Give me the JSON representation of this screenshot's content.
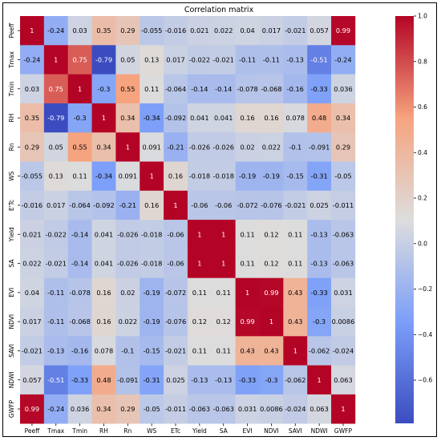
{
  "chart_data": {
    "type": "heatmap",
    "title": "Correlation matrix",
    "labels": [
      "Peeff",
      "Tmax",
      "Tmin",
      "RH",
      "Rn",
      "WS",
      "ETc",
      "Yield",
      "SA",
      "EVI",
      "NDVI",
      "SAVI",
      "NDWI",
      "GWFP"
    ],
    "x_tick_labels": [
      "Peeff",
      "Tmax",
      "Tmin",
      "RH",
      "Rn",
      "WS",
      "ETc",
      "Yield",
      "SA",
      "EVI",
      "NDVI",
      "SAVI",
      "NDWI",
      "GWFP"
    ],
    "y_tick_labels": [
      "Peeff",
      "Tmax",
      "Tmin",
      "RH",
      "Rn",
      "WS",
      "E'Tc",
      "Yield",
      "SA",
      "EVI",
      "NDVI",
      "SAVI",
      "NDWI",
      "GWFP"
    ],
    "values": [
      [
        1,
        -0.24,
        0.03,
        0.35,
        0.29,
        -0.055,
        -0.016,
        0.021,
        0.022,
        0.04,
        0.017,
        -0.021,
        0.057,
        0.99
      ],
      [
        -0.24,
        1,
        0.75,
        -0.79,
        0.05,
        0.13,
        0.017,
        -0.022,
        -0.021,
        -0.11,
        -0.11,
        -0.13,
        -0.51,
        -0.24
      ],
      [
        0.03,
        0.75,
        1,
        -0.3,
        0.55,
        0.11,
        -0.064,
        -0.14,
        -0.14,
        -0.078,
        -0.068,
        -0.16,
        -0.33,
        0.036
      ],
      [
        0.35,
        -0.79,
        -0.3,
        1,
        0.34,
        -0.34,
        -0.092,
        0.041,
        0.041,
        0.16,
        0.16,
        0.078,
        0.48,
        0.34
      ],
      [
        0.29,
        0.05,
        0.55,
        0.34,
        1,
        0.091,
        -0.21,
        -0.026,
        -0.026,
        0.02,
        0.022,
        -0.1,
        -0.091,
        0.29
      ],
      [
        -0.055,
        0.13,
        0.11,
        -0.34,
        0.091,
        1,
        0.16,
        -0.018,
        -0.018,
        -0.19,
        -0.19,
        -0.15,
        -0.31,
        -0.05
      ],
      [
        -0.016,
        0.017,
        -0.064,
        -0.092,
        -0.21,
        0.16,
        1,
        -0.06,
        -0.06,
        -0.072,
        -0.076,
        -0.021,
        0.025,
        -0.011
      ],
      [
        0.021,
        -0.022,
        -0.14,
        0.041,
        -0.026,
        -0.018,
        -0.06,
        1,
        1,
        0.11,
        0.12,
        0.11,
        -0.13,
        -0.063
      ],
      [
        0.022,
        -0.021,
        -0.14,
        0.041,
        -0.026,
        -0.018,
        -0.06,
        1,
        1,
        0.11,
        0.12,
        0.11,
        -0.13,
        -0.063
      ],
      [
        0.04,
        -0.11,
        -0.078,
        0.16,
        0.02,
        -0.19,
        -0.072,
        0.11,
        0.11,
        1,
        0.99,
        0.43,
        -0.33,
        0.031
      ],
      [
        0.017,
        -0.11,
        -0.068,
        0.16,
        0.022,
        -0.19,
        -0.076,
        0.12,
        0.12,
        0.99,
        1,
        0.43,
        -0.3,
        0.0086
      ],
      [
        -0.021,
        -0.13,
        -0.16,
        0.078,
        -0.1,
        -0.15,
        -0.021,
        0.11,
        0.11,
        0.43,
        0.43,
        1,
        -0.062,
        -0.024
      ],
      [
        0.057,
        -0.51,
        -0.33,
        0.48,
        -0.091,
        -0.31,
        0.025,
        -0.13,
        -0.13,
        -0.33,
        -0.3,
        -0.062,
        1,
        0.063
      ],
      [
        0.99,
        -0.24,
        0.036,
        0.34,
        0.29,
        -0.05,
        -0.011,
        -0.063,
        -0.063,
        0.031,
        0.0086,
        -0.024,
        0.063,
        1
      ]
    ],
    "colormap": "coolwarm",
    "vmin": -0.79,
    "vmax": 1.0,
    "colorbar": {
      "ticks": [
        1.0,
        0.8,
        0.6,
        0.4,
        0.2,
        0.0,
        -0.2,
        -0.4,
        -0.6
      ],
      "tick_labels": [
        "1.0",
        "0.8",
        "0.6",
        "0.4",
        "0.2",
        "0.0",
        "−0.2",
        "−0.4",
        "−0.6"
      ],
      "placement": "right"
    }
  }
}
